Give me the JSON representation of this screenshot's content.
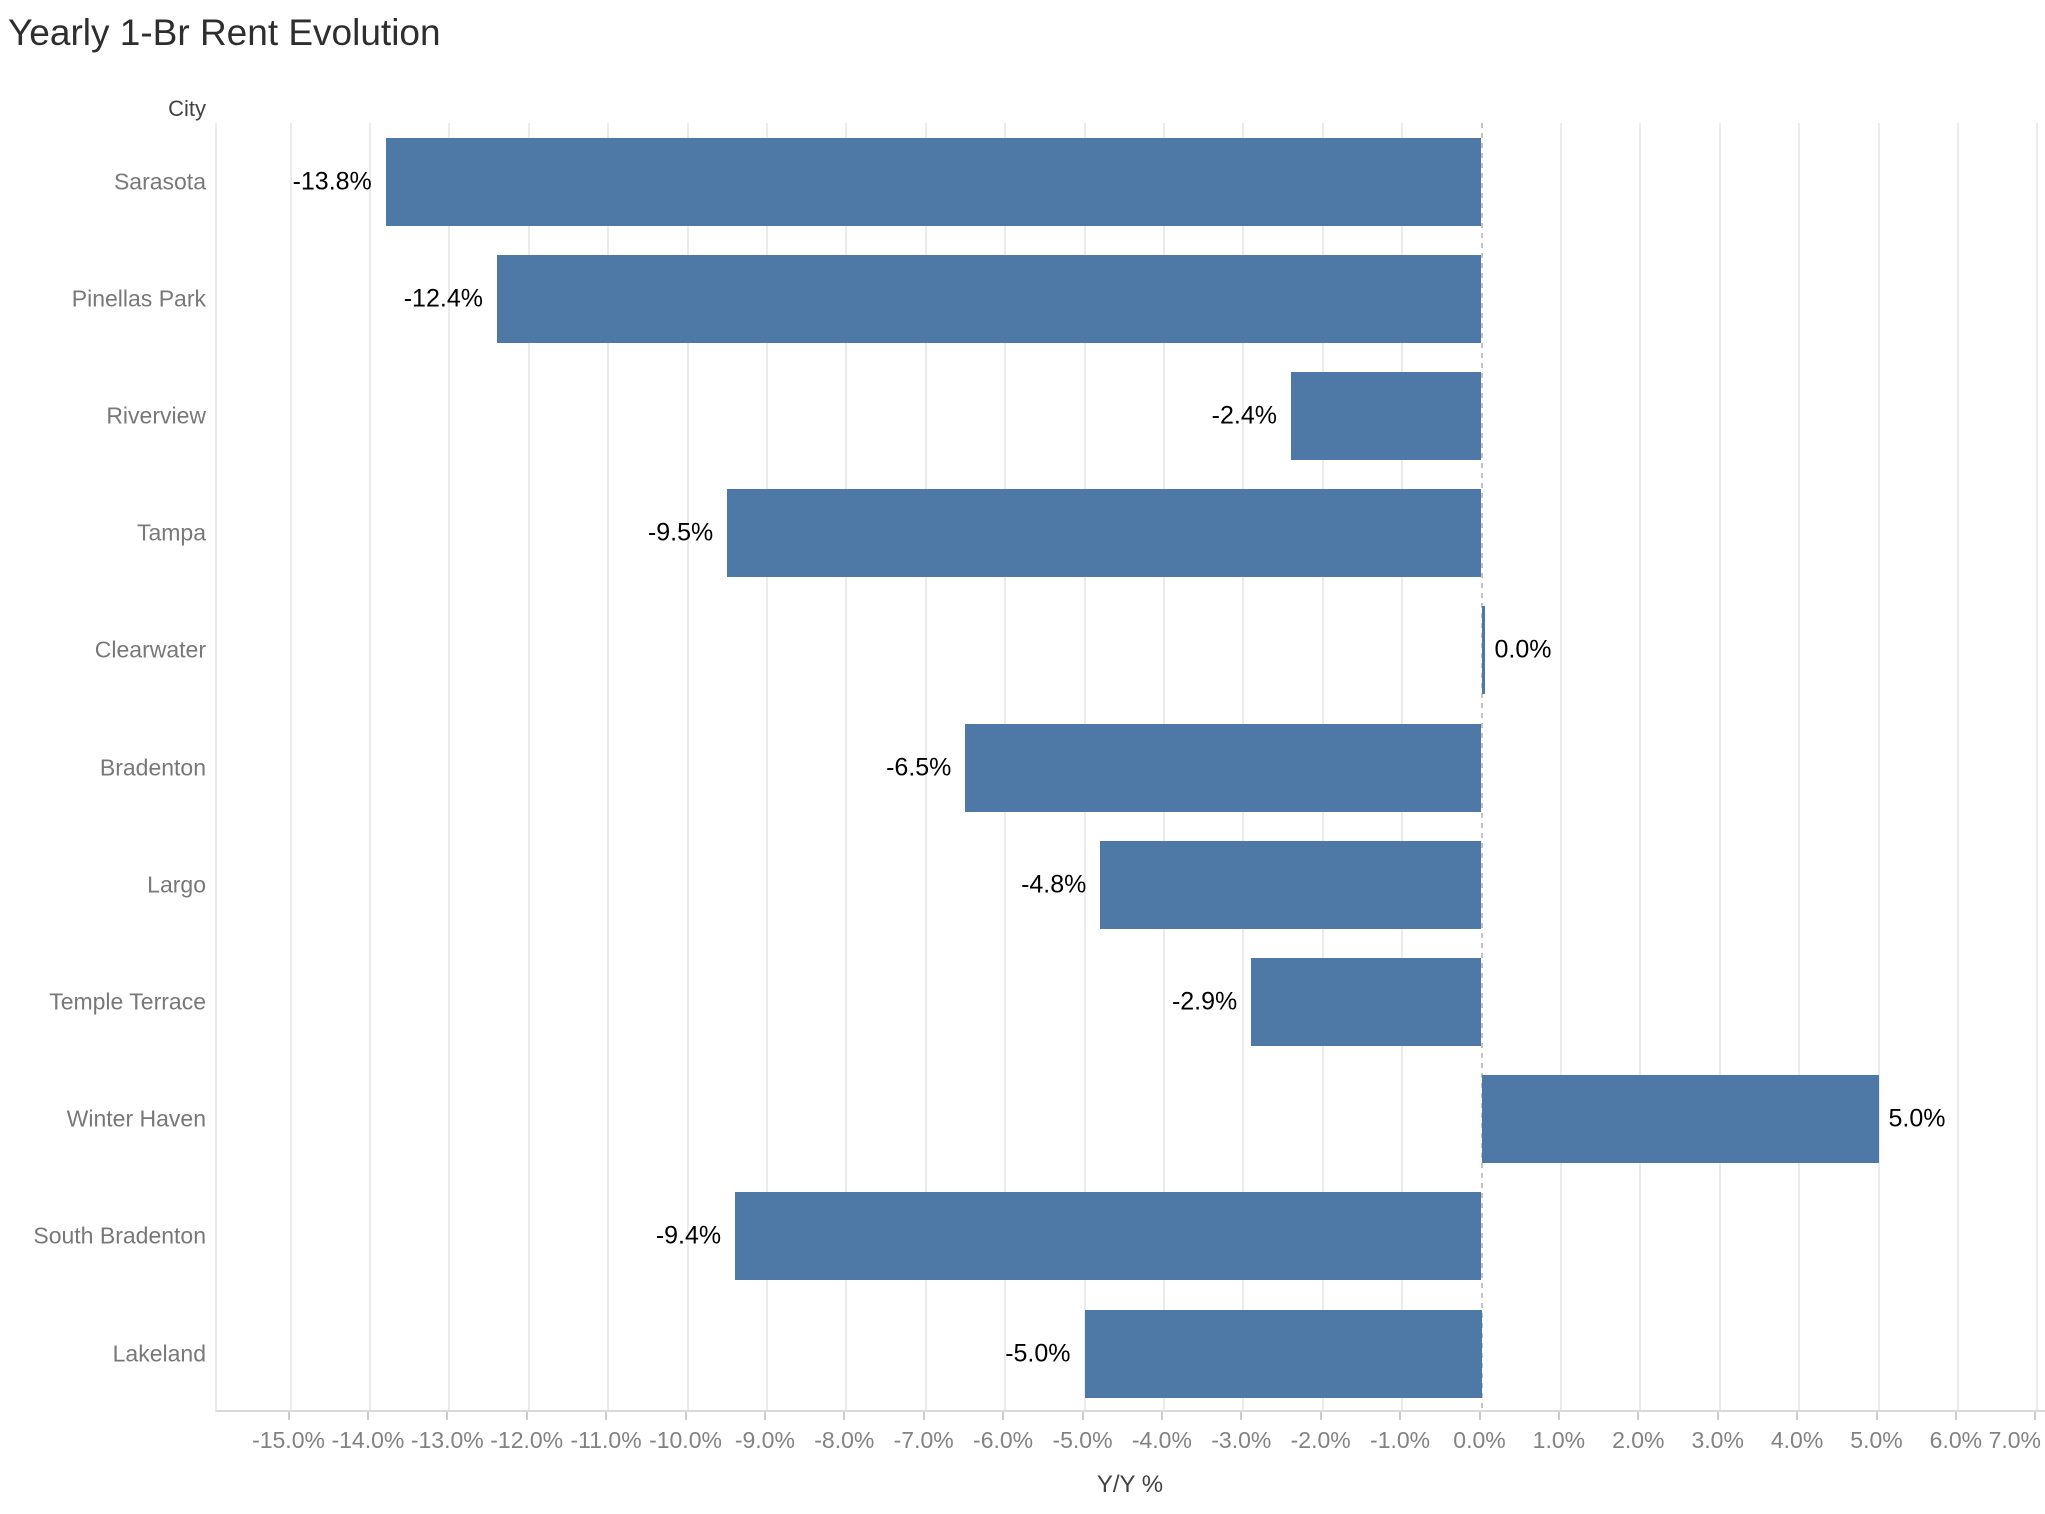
{
  "title": "Yearly 1-Br Rent Evolution",
  "chart_data": {
    "type": "bar",
    "orientation": "horizontal",
    "title": "Yearly 1-Br Rent Evolution",
    "column_header": "City",
    "xlabel": "Y/Y %",
    "categories": [
      "Sarasota",
      "Pinellas Park",
      "Riverview",
      "Tampa",
      "Clearwater",
      "Bradenton",
      "Largo",
      "Temple Terrace",
      "Winter Haven",
      "South Bradenton",
      "Lakeland"
    ],
    "values": [
      -13.8,
      -12.4,
      -2.4,
      -9.5,
      0.0,
      -6.5,
      -4.8,
      -2.9,
      5.0,
      -9.4,
      -5.0
    ],
    "bar_labels": [
      "-13.8%",
      "-12.4%",
      "-2.4%",
      "-9.5%",
      "0.0%",
      "-6.5%",
      "-4.8%",
      "-2.9%",
      "5.0%",
      "-9.4%",
      "-5.0%"
    ],
    "xlim": [
      -15.95,
      7.12
    ],
    "xticks": [
      -15,
      -14,
      -13,
      -12,
      -11,
      -10,
      -9,
      -8,
      -7,
      -6,
      -5,
      -4,
      -3,
      -2,
      -1,
      0,
      1,
      2,
      3,
      4,
      5,
      6,
      7
    ],
    "xtick_labels": [
      "-15.0%",
      "-14.0%",
      "-13.0%",
      "-12.0%",
      "-11.0%",
      "-10.0%",
      "-9.0%",
      "-8.0%",
      "-7.0%",
      "-6.0%",
      "-5.0%",
      "-4.0%",
      "-3.0%",
      "-2.0%",
      "-1.0%",
      "0.0%",
      "1.0%",
      "2.0%",
      "3.0%",
      "4.0%",
      "5.0%",
      "6.0%",
      "7.0%"
    ],
    "grid": true,
    "zero_line_style": "dashed",
    "legend": "none",
    "bar_color": "#4e79a7",
    "label_color": "#000000",
    "axis_label_color": "#787878"
  }
}
